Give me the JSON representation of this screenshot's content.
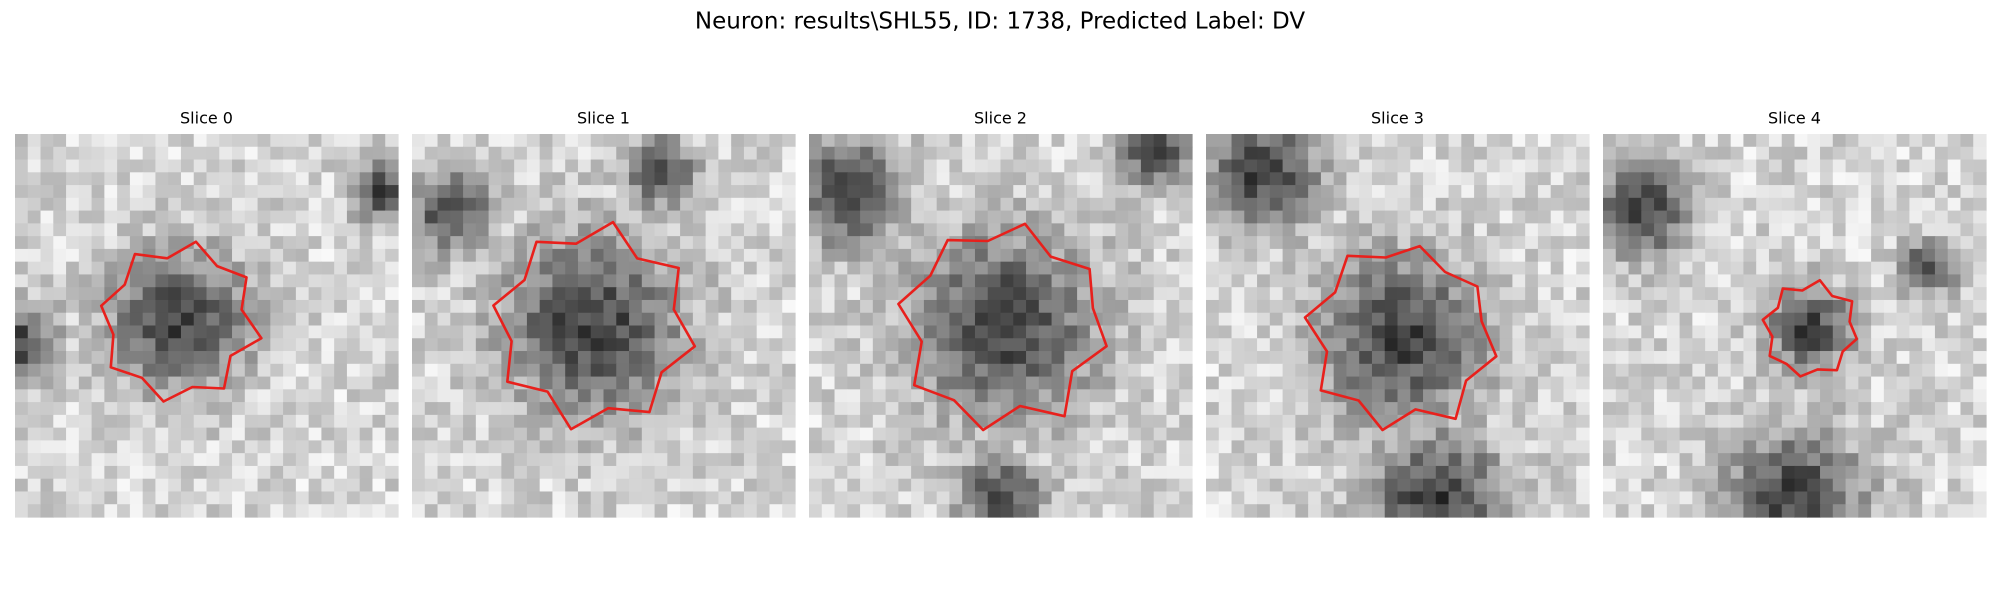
{
  "title": "Neuron: results\\SHL55, ID: 1738, Predicted Label: DV",
  "panels": [
    {
      "title": "Slice 0"
    },
    {
      "title": "Slice 1"
    },
    {
      "title": "Slice 2"
    },
    {
      "title": "Slice 3"
    },
    {
      "title": "Slice 4"
    }
  ]
}
